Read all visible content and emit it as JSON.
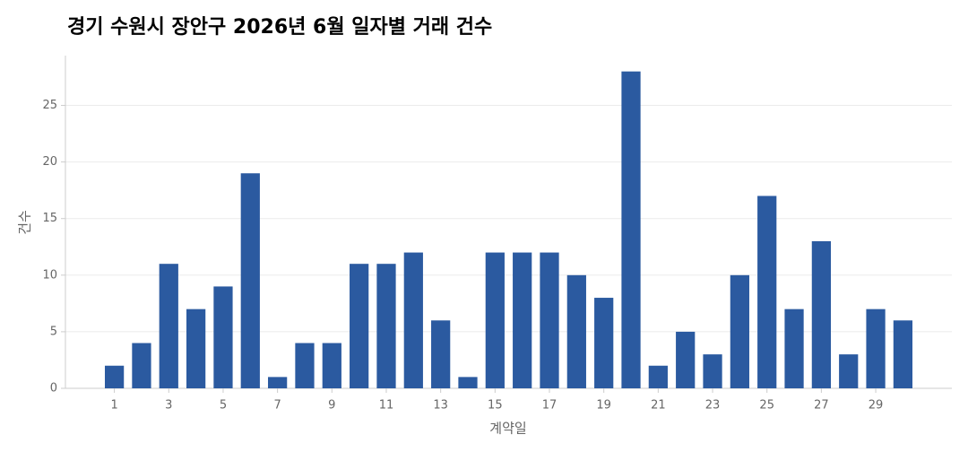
{
  "chart_data": {
    "type": "bar",
    "title": "경기 수원시 장안구 2026년 6월 일자별 거래 건수",
    "x_label": "계약일",
    "y_label": "건수",
    "x": [
      1,
      2,
      3,
      4,
      5,
      6,
      7,
      8,
      9,
      10,
      11,
      12,
      13,
      14,
      15,
      16,
      17,
      18,
      19,
      20,
      21,
      22,
      23,
      24,
      25,
      26,
      27,
      28,
      29,
      30
    ],
    "values": [
      2,
      4,
      11,
      7,
      9,
      19,
      1,
      4,
      4,
      11,
      11,
      12,
      6,
      1,
      12,
      12,
      12,
      10,
      8,
      28,
      2,
      5,
      3,
      10,
      17,
      7,
      13,
      3,
      7,
      6
    ],
    "color": "#2b5aa0",
    "xlim": [
      -0.8,
      31.8
    ],
    "xticks": [
      1,
      3,
      5,
      7,
      9,
      11,
      13,
      15,
      17,
      19,
      21,
      23,
      25,
      27,
      29
    ],
    "ylim": [
      0,
      29.4
    ],
    "yticks": [
      0,
      5,
      10,
      15,
      20,
      25
    ],
    "grid": true
  }
}
